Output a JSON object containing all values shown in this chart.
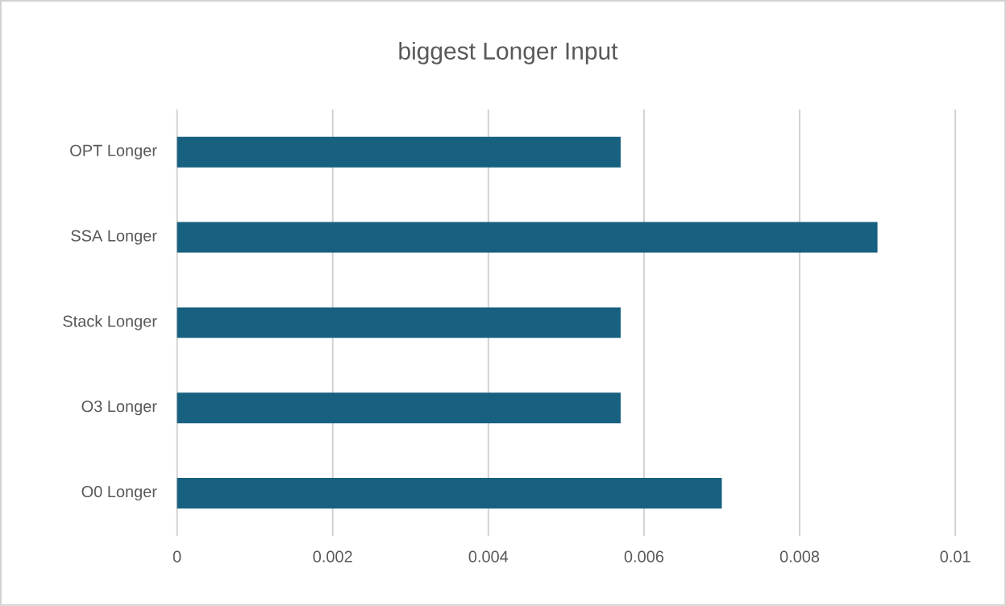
{
  "chart_data": {
    "type": "bar",
    "orientation": "horizontal",
    "title": "biggest Longer Input",
    "categories": [
      "OPT Longer",
      "SSA Longer",
      "Stack Longer",
      "O3 Longer",
      "O0 Longer"
    ],
    "values": [
      0.0057,
      0.009,
      0.0057,
      0.0057,
      0.007
    ],
    "color": "#17607f",
    "xlim": [
      0,
      0.01
    ],
    "xticks": [
      0,
      0.002,
      0.004,
      0.006,
      0.008,
      0.01
    ],
    "grid": "x"
  }
}
